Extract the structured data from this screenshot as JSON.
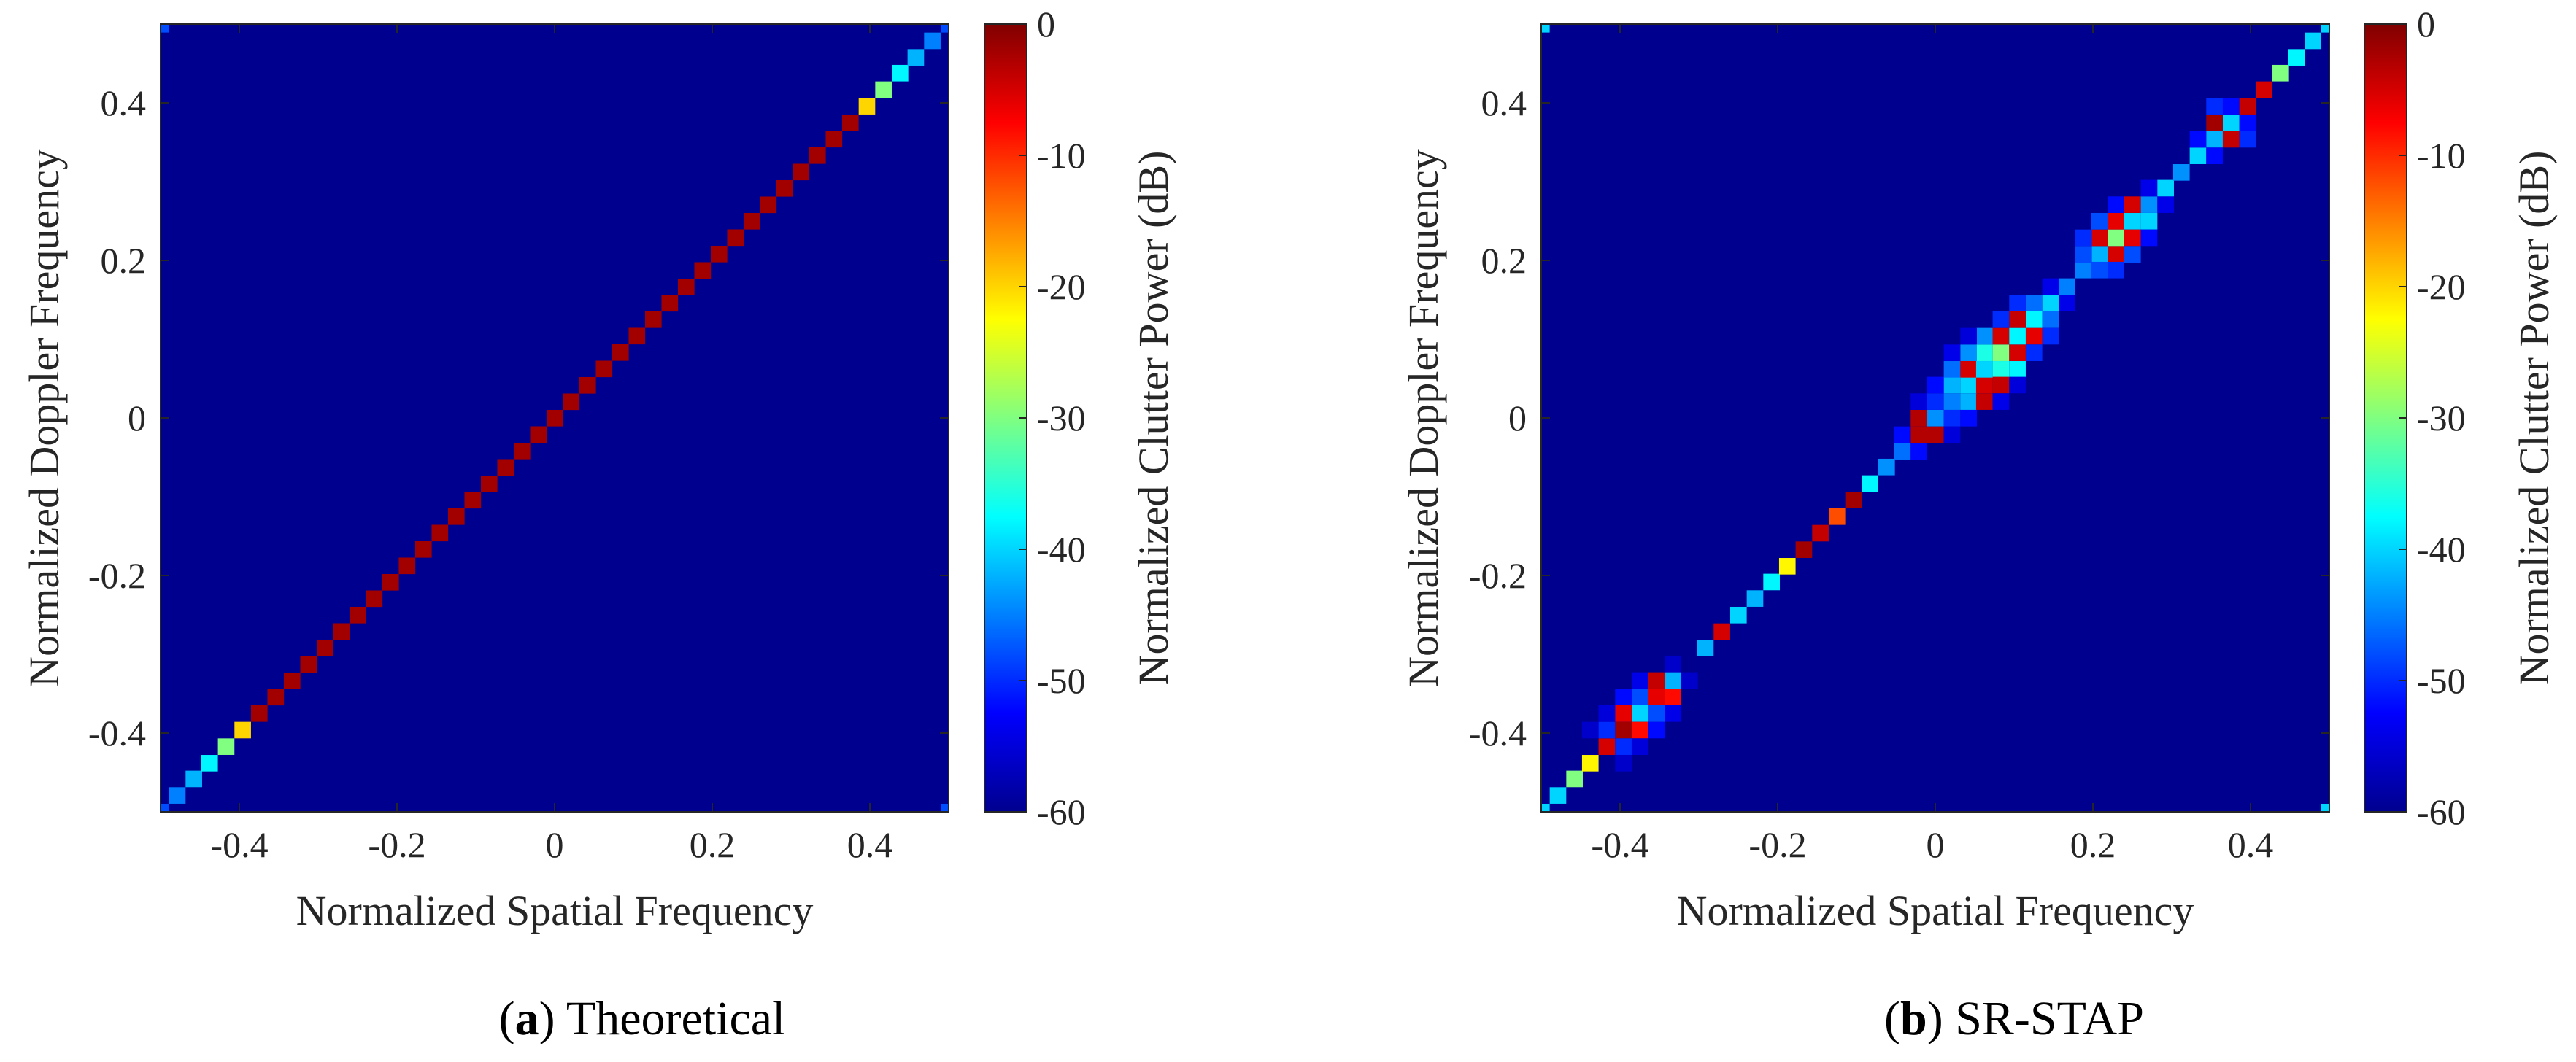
{
  "colormap": [
    "#00008f",
    "#0000ff",
    "#0080ff",
    "#00ffff",
    "#80ff80",
    "#ffff00",
    "#ff8000",
    "#ff0000",
    "#800000"
  ],
  "chart_data": [
    {
      "type": "heatmap",
      "panel_tag": "a",
      "caption": "Theoretical",
      "xlabel": "Normalized Spatial Frequency",
      "ylabel": "Normalized Doppler Frequency",
      "colorbar_label": "Normalized Clutter Power (dB)",
      "xlim": [
        -0.5,
        0.5
      ],
      "ylim": [
        -0.5,
        0.5
      ],
      "clim": [
        -60,
        0
      ],
      "grid_size": 49,
      "background_db": -60,
      "xticks": [
        -0.4,
        -0.2,
        0,
        0.2,
        0.4
      ],
      "xtick_labels": [
        "-0.4",
        "-0.2",
        "0",
        "0.2",
        "0.4"
      ],
      "yticks": [
        -0.4,
        -0.2,
        0,
        0.2,
        0.4
      ],
      "ytick_labels": [
        "-0.4",
        "-0.2",
        "0",
        "0.2",
        "0.4"
      ],
      "cticks": [
        0,
        -10,
        -20,
        -30,
        -40,
        -50,
        -60
      ],
      "ctick_labels": [
        "0",
        "-10",
        "-20",
        "-30",
        "-40",
        "-50",
        "-60"
      ],
      "cells": [
        [
          -0.5,
          -0.5,
          -48
        ],
        [
          0.5,
          -0.5,
          -48
        ],
        [
          -0.5,
          0.5,
          -48
        ],
        [
          0.5,
          0.5,
          -48
        ],
        [
          -0.479,
          -0.479,
          -45
        ],
        [
          -0.458,
          -0.458,
          -42
        ],
        [
          -0.438,
          -0.438,
          -38
        ],
        [
          -0.417,
          -0.417,
          -30
        ],
        [
          -0.396,
          -0.396,
          -20
        ],
        [
          0.396,
          0.396,
          -20
        ],
        [
          0.417,
          0.417,
          -30
        ],
        [
          0.438,
          0.438,
          -38
        ],
        [
          0.458,
          0.458,
          -42
        ],
        [
          0.479,
          0.479,
          -45
        ]
      ],
      "diagonal": {
        "from": -0.375,
        "to": 0.375,
        "value_db": -2
      }
    },
    {
      "type": "heatmap",
      "panel_tag": "b",
      "caption": "SR-STAP",
      "xlabel": "Normalized Spatial Frequency",
      "ylabel": "Normalized Doppler Frequency",
      "colorbar_label": "Normalized Clutter Power (dB)",
      "xlim": [
        -0.5,
        0.5
      ],
      "ylim": [
        -0.5,
        0.5
      ],
      "clim": [
        -60,
        0
      ],
      "grid_size": 49,
      "background_db": -60,
      "xticks": [
        -0.4,
        -0.2,
        0,
        0.2,
        0.4
      ],
      "xtick_labels": [
        "-0.4",
        "-0.2",
        "0",
        "0.2",
        "0.4"
      ],
      "yticks": [
        -0.4,
        -0.2,
        0,
        0.2,
        0.4
      ],
      "ytick_labels": [
        "-0.4",
        "-0.2",
        "0",
        "0.2",
        "0.4"
      ],
      "cticks": [
        0,
        -10,
        -20,
        -30,
        -40,
        -50,
        -60
      ],
      "ctick_labels": [
        "0",
        "-10",
        "-20",
        "-30",
        "-40",
        "-50",
        "-60"
      ],
      "cells": [
        [
          -0.5,
          -0.5,
          -40
        ],
        [
          0.5,
          -0.5,
          -40
        ],
        [
          -0.5,
          0.5,
          -40
        ],
        [
          0.5,
          0.5,
          -40
        ],
        [
          -0.479,
          -0.479,
          -40
        ],
        [
          -0.458,
          -0.458,
          -30
        ],
        [
          -0.438,
          -0.438,
          -22
        ],
        [
          -0.417,
          -0.417,
          -5
        ],
        [
          -0.396,
          -0.396,
          -2
        ],
        [
          -0.375,
          -0.375,
          -40
        ],
        [
          -0.354,
          -0.354,
          -6
        ],
        [
          -0.333,
          -0.333,
          -42
        ],
        [
          -0.396,
          -0.375,
          -6
        ],
        [
          -0.375,
          -0.396,
          -8
        ],
        [
          -0.354,
          -0.333,
          -4
        ],
        [
          -0.333,
          -0.354,
          -8
        ],
        [
          -0.396,
          -0.354,
          -52
        ],
        [
          -0.354,
          -0.396,
          -52
        ],
        [
          -0.417,
          -0.396,
          -50
        ],
        [
          -0.396,
          -0.417,
          -50
        ],
        [
          -0.375,
          -0.354,
          -48
        ],
        [
          -0.354,
          -0.375,
          -48
        ],
        [
          -0.333,
          -0.375,
          -54
        ],
        [
          -0.375,
          -0.333,
          -54
        ],
        [
          -0.417,
          -0.375,
          -55
        ],
        [
          -0.375,
          -0.417,
          -55
        ],
        [
          -0.396,
          -0.438,
          -56
        ],
        [
          -0.438,
          -0.396,
          -56
        ],
        [
          -0.333,
          -0.312,
          -56
        ],
        [
          -0.312,
          -0.333,
          -56
        ],
        [
          -0.292,
          -0.292,
          -42
        ],
        [
          -0.271,
          -0.271,
          -5
        ],
        [
          -0.25,
          -0.25,
          -40
        ],
        [
          -0.229,
          -0.229,
          -42
        ],
        [
          -0.208,
          -0.208,
          -38
        ],
        [
          -0.188,
          -0.188,
          -22
        ],
        [
          -0.167,
          -0.167,
          -2
        ],
        [
          -0.146,
          -0.146,
          -4
        ],
        [
          -0.125,
          -0.125,
          -12
        ],
        [
          -0.104,
          -0.104,
          -2
        ],
        [
          -0.083,
          -0.083,
          -38
        ],
        [
          -0.062,
          -0.062,
          -44
        ],
        [
          -0.042,
          -0.042,
          -46
        ],
        [
          -0.021,
          -0.021,
          -3
        ],
        [
          0,
          0,
          -44
        ],
        [
          -0.021,
          0,
          -3
        ],
        [
          0,
          -0.021,
          -3
        ],
        [
          -0.021,
          -0.042,
          -52
        ],
        [
          -0.042,
          -0.021,
          -52
        ],
        [
          0,
          0.021,
          -50
        ],
        [
          0.021,
          0,
          -50
        ],
        [
          0.021,
          0.021,
          -45
        ],
        [
          0.042,
          0.042,
          -40
        ],
        [
          0.042,
          0.062,
          -5
        ],
        [
          0.062,
          0.042,
          -5
        ],
        [
          0.062,
          0.062,
          -40
        ],
        [
          0.083,
          0.083,
          -30
        ],
        [
          0.083,
          0.104,
          -5
        ],
        [
          0.104,
          0.083,
          -5
        ],
        [
          0.104,
          0.104,
          -38
        ],
        [
          0.062,
          0.083,
          -36
        ],
        [
          0.083,
          0.062,
          -36
        ],
        [
          0.042,
          0.021,
          -42
        ],
        [
          0.021,
          0.042,
          -42
        ],
        [
          0.062,
          0.021,
          -4
        ],
        [
          0.021,
          0.062,
          -46
        ],
        [
          0.083,
          0.042,
          -4
        ],
        [
          0.042,
          0.083,
          -44
        ],
        [
          0.104,
          0.062,
          -38
        ],
        [
          0.062,
          0.104,
          -44
        ],
        [
          0.104,
          0.125,
          -4
        ],
        [
          0.125,
          0.104,
          -6
        ],
        [
          0.125,
          0.125,
          -38
        ],
        [
          0.146,
          0.146,
          -40
        ],
        [
          0.125,
          0.146,
          -46
        ],
        [
          0.146,
          0.125,
          -46
        ],
        [
          0.104,
          0.146,
          -50
        ],
        [
          0.146,
          0.104,
          -50
        ],
        [
          0.125,
          0.083,
          -50
        ],
        [
          0.083,
          0.125,
          -50
        ],
        [
          0.0,
          0.042,
          -52
        ],
        [
          0.042,
          0.0,
          -52
        ],
        [
          0.021,
          0.083,
          -54
        ],
        [
          0.083,
          0.021,
          -54
        ],
        [
          -0.021,
          0.021,
          -55
        ],
        [
          0.021,
          -0.021,
          -55
        ],
        [
          0.042,
          0.104,
          -55
        ],
        [
          0.104,
          0.042,
          -55
        ],
        [
          0.146,
          0.167,
          -54
        ],
        [
          0.167,
          0.146,
          -54
        ],
        [
          0.167,
          0.167,
          -45
        ],
        [
          0.188,
          0.188,
          -45
        ],
        [
          0.208,
          0.208,
          -42
        ],
        [
          0.208,
          0.229,
          -5
        ],
        [
          0.229,
          0.208,
          -5
        ],
        [
          0.229,
          0.229,
          -30
        ],
        [
          0.25,
          0.25,
          -40
        ],
        [
          0.229,
          0.25,
          -6
        ],
        [
          0.25,
          0.229,
          -6
        ],
        [
          0.188,
          0.208,
          -48
        ],
        [
          0.208,
          0.188,
          -48
        ],
        [
          0.25,
          0.271,
          -5
        ],
        [
          0.271,
          0.25,
          -40
        ],
        [
          0.271,
          0.271,
          -44
        ],
        [
          0.188,
          0.229,
          -50
        ],
        [
          0.229,
          0.188,
          -50
        ],
        [
          0.208,
          0.25,
          -48
        ],
        [
          0.25,
          0.208,
          -48
        ],
        [
          0.271,
          0.229,
          -52
        ],
        [
          0.229,
          0.271,
          -52
        ],
        [
          0.292,
          0.271,
          -54
        ],
        [
          0.271,
          0.292,
          -54
        ],
        [
          0.292,
          0.292,
          -40
        ],
        [
          0.312,
          0.312,
          -44
        ],
        [
          0.333,
          0.333,
          -40
        ],
        [
          0.354,
          0.354,
          -42
        ],
        [
          0.354,
          0.375,
          -2
        ],
        [
          0.375,
          0.354,
          -4
        ],
        [
          0.375,
          0.375,
          -40
        ],
        [
          0.354,
          0.396,
          -50
        ],
        [
          0.396,
          0.354,
          -50
        ],
        [
          0.333,
          0.354,
          -52
        ],
        [
          0.354,
          0.333,
          -52
        ],
        [
          0.375,
          0.396,
          -52
        ],
        [
          0.396,
          0.375,
          -52
        ],
        [
          0.396,
          0.396,
          -4
        ],
        [
          0.417,
          0.417,
          -5
        ],
        [
          0.438,
          0.438,
          -30
        ],
        [
          0.458,
          0.458,
          -38
        ],
        [
          0.479,
          0.479,
          -40
        ]
      ]
    }
  ]
}
